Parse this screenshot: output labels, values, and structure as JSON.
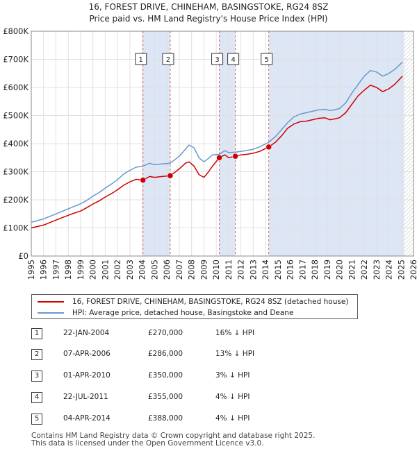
{
  "title": "16, FOREST DRIVE, CHINEHAM, BASINGSTOKE, RG24 8SZ",
  "subtitle": "Price paid vs. HM Land Registry's House Price Index (HPI)",
  "colors": {
    "property": "#cc0000",
    "hpi": "#6699cc",
    "shade": "#dde6f5",
    "marker_line": "#e06060",
    "grid": "#e0e0e0"
  },
  "chart_data": {
    "type": "line",
    "xlim": [
      1995,
      2026
    ],
    "ylim": [
      0,
      800000
    ],
    "y_ticks": [
      0,
      100000,
      200000,
      300000,
      400000,
      500000,
      600000,
      700000,
      800000
    ],
    "y_tick_labels": [
      "£0",
      "£100K",
      "£200K",
      "£300K",
      "£400K",
      "£500K",
      "£600K",
      "£700K",
      "£800K"
    ],
    "x_ticks": [
      1995,
      1996,
      1997,
      1998,
      1999,
      2000,
      2001,
      2002,
      2003,
      2004,
      2005,
      2006,
      2007,
      2008,
      2009,
      2010,
      2011,
      2012,
      2013,
      2014,
      2015,
      2016,
      2017,
      2018,
      2019,
      2020,
      2021,
      2022,
      2023,
      2024,
      2025,
      2026
    ],
    "x_tick_labels": [
      "1995",
      "1996",
      "1997",
      "1998",
      "1999",
      "2000",
      "2001",
      "2002",
      "2003",
      "2004",
      "2005",
      "2006",
      "2007",
      "2008",
      "2009",
      "2010",
      "2011",
      "2012",
      "2013",
      "2014",
      "2015",
      "2016",
      "2017",
      "2018",
      "2019",
      "2020",
      "2021",
      "2022",
      "2023",
      "2024",
      "2025",
      "2026"
    ],
    "shaded_ranges": [
      [
        2004.06,
        2006.27
      ],
      [
        2010.25,
        2011.55
      ],
      [
        2014.26,
        2025.25
      ]
    ],
    "future_range": [
      2025.25,
      2026
    ],
    "series": [
      {
        "name": "property",
        "x": [
          1995.0,
          1996.0,
          1997.0,
          1998.0,
          1998.5,
          1999.0,
          1999.5,
          2000.0,
          2000.5,
          2001.0,
          2001.5,
          2002.0,
          2002.5,
          2003.0,
          2003.5,
          2004.06,
          2004.6,
          2005.0,
          2005.6,
          2006.27,
          2006.7,
          2007.0,
          2007.5,
          2007.8,
          2008.2,
          2008.6,
          2009.0,
          2009.3,
          2009.7,
          2010.25,
          2010.7,
          2011.0,
          2011.55,
          2012.0,
          2012.5,
          2013.0,
          2013.5,
          2014.26,
          2014.8,
          2015.3,
          2015.8,
          2016.3,
          2016.8,
          2017.3,
          2017.8,
          2018.3,
          2018.8,
          2019.2,
          2019.6,
          2020.0,
          2020.5,
          2021.0,
          2021.5,
          2022.0,
          2022.5,
          2023.0,
          2023.5,
          2024.0,
          2024.5,
          2025.1
        ],
        "y": [
          100000,
          110000,
          128000,
          145000,
          153000,
          160000,
          172000,
          185000,
          196000,
          210000,
          222000,
          236000,
          252000,
          264000,
          273000,
          270000,
          283000,
          280000,
          283000,
          286000,
          300000,
          310000,
          330000,
          335000,
          320000,
          290000,
          280000,
          295000,
          320000,
          350000,
          360000,
          350000,
          355000,
          360000,
          362000,
          366000,
          372000,
          388000,
          405000,
          428000,
          455000,
          470000,
          478000,
          480000,
          485000,
          490000,
          492000,
          485000,
          488000,
          492000,
          510000,
          540000,
          570000,
          590000,
          608000,
          600000,
          585000,
          595000,
          612000,
          640000
        ]
      },
      {
        "name": "hpi",
        "x": [
          1995.0,
          1996.0,
          1997.0,
          1998.0,
          1998.5,
          1999.0,
          1999.5,
          2000.0,
          2000.5,
          2001.0,
          2001.5,
          2002.0,
          2002.5,
          2003.0,
          2003.5,
          2004.06,
          2004.6,
          2005.0,
          2005.6,
          2006.27,
          2006.7,
          2007.0,
          2007.5,
          2007.8,
          2008.2,
          2008.6,
          2009.0,
          2009.3,
          2009.7,
          2010.25,
          2010.7,
          2011.0,
          2011.55,
          2012.0,
          2012.5,
          2013.0,
          2013.5,
          2014.26,
          2014.8,
          2015.3,
          2015.8,
          2016.3,
          2016.8,
          2017.3,
          2017.8,
          2018.3,
          2018.8,
          2019.2,
          2019.6,
          2020.0,
          2020.5,
          2021.0,
          2021.5,
          2022.0,
          2022.5,
          2023.0,
          2023.5,
          2024.0,
          2024.5,
          2025.1
        ],
        "y": [
          120000,
          132000,
          150000,
          168000,
          177000,
          186000,
          198000,
          213000,
          226000,
          242000,
          256000,
          272000,
          292000,
          305000,
          316000,
          320000,
          330000,
          325000,
          328000,
          330000,
          345000,
          355000,
          380000,
          395000,
          385000,
          350000,
          335000,
          345000,
          360000,
          362000,
          375000,
          368000,
          370000,
          372000,
          376000,
          380000,
          388000,
          405000,
          425000,
          450000,
          475000,
          495000,
          505000,
          510000,
          515000,
          520000,
          522000,
          518000,
          520000,
          525000,
          545000,
          580000,
          610000,
          640000,
          660000,
          655000,
          640000,
          650000,
          665000,
          690000
        ]
      }
    ],
    "sales": [
      {
        "id": "1",
        "x": 2004.06,
        "price": 270000
      },
      {
        "id": "2",
        "x": 2006.27,
        "price": 286000
      },
      {
        "id": "3",
        "x": 2010.25,
        "price": 350000
      },
      {
        "id": "4",
        "x": 2011.55,
        "price": 355000
      },
      {
        "id": "5",
        "x": 2014.26,
        "price": 388000
      }
    ]
  },
  "legend": {
    "property_label": "16, FOREST DRIVE, CHINEHAM, BASINGSTOKE, RG24 8SZ (detached house)",
    "hpi_label": "HPI: Average price, detached house, Basingstoke and Deane"
  },
  "sales_table": [
    {
      "num": "1",
      "date": "22-JAN-2004",
      "price": "£270,000",
      "hpi": "16% ↓ HPI"
    },
    {
      "num": "2",
      "date": "07-APR-2006",
      "price": "£286,000",
      "hpi": "13% ↓ HPI"
    },
    {
      "num": "3",
      "date": "01-APR-2010",
      "price": "£350,000",
      "hpi": "3% ↓ HPI"
    },
    {
      "num": "4",
      "date": "22-JUL-2011",
      "price": "£355,000",
      "hpi": "4% ↓ HPI"
    },
    {
      "num": "5",
      "date": "04-APR-2014",
      "price": "£388,000",
      "hpi": "4% ↓ HPI"
    }
  ],
  "footer": {
    "line1": "Contains HM Land Registry data © Crown copyright and database right 2025.",
    "line2": "This data is licensed under the Open Government Licence v3.0."
  }
}
